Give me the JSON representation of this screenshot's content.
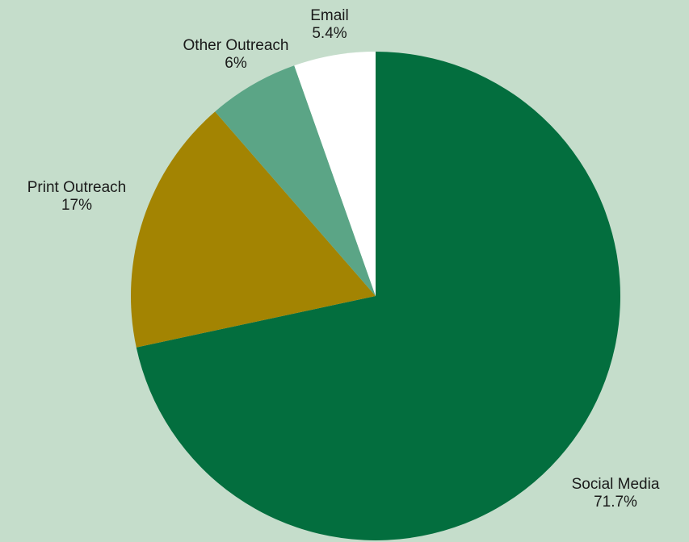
{
  "chart_data": {
    "type": "pie",
    "title": "",
    "slices": [
      {
        "label": "Social Media",
        "value": 71.7,
        "display": "71.7%",
        "color": "#036e3e"
      },
      {
        "label": "Print Outreach",
        "value": 17,
        "display": "17%",
        "color": "#a38402"
      },
      {
        "label": "Other Outreach",
        "value": 6,
        "display": "6%",
        "color": "#5ba586"
      },
      {
        "label": "Email",
        "value": 5.4,
        "display": "5.4%",
        "color": "#ffffff"
      }
    ],
    "start": "12 o'clock",
    "direction": "clockwise",
    "legend": "none"
  }
}
